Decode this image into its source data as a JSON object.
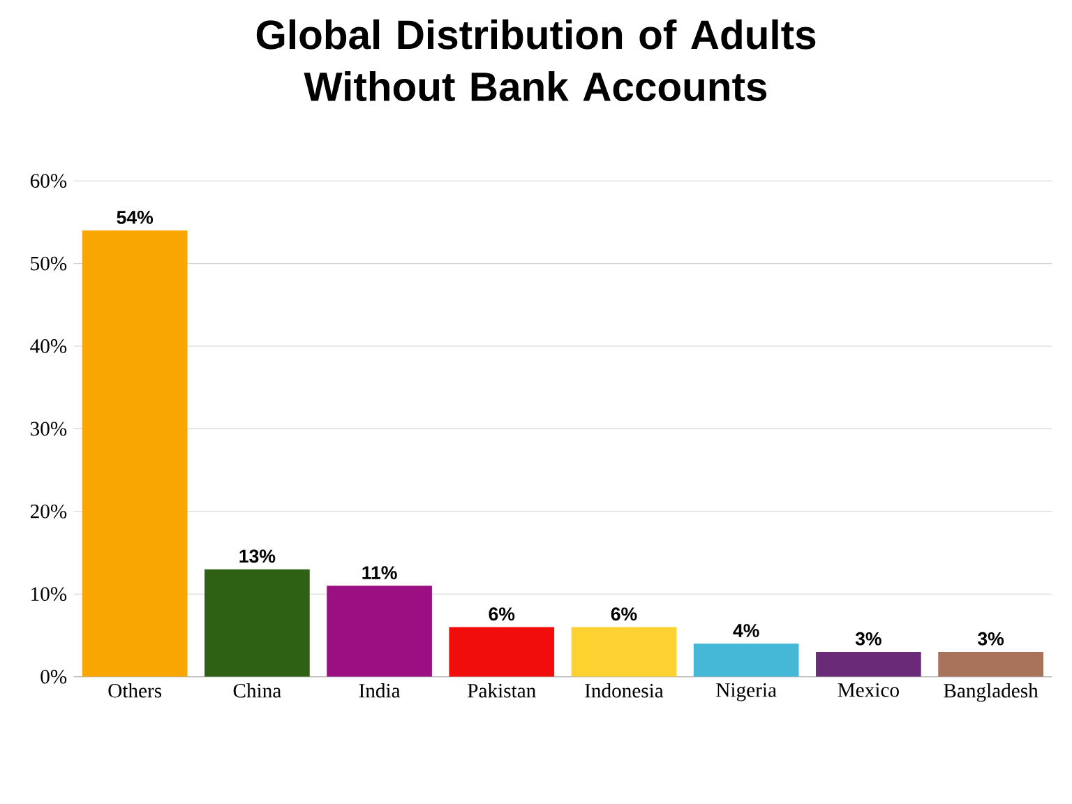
{
  "chart_data": {
    "type": "bar",
    "title": "Global Distribution of Adults Without Bank Accounts",
    "categories": [
      "Others",
      "China",
      "India",
      "Pakistan",
      "Indonesia",
      "Nigeria",
      "Mexico",
      "Bangladesh"
    ],
    "values": [
      54,
      13,
      11,
      6,
      6,
      4,
      3,
      3
    ],
    "colors": [
      "#f9a602",
      "#2f6114",
      "#9c0f82",
      "#f20d0d",
      "#fdd230",
      "#45b8d8",
      "#6b2a78",
      "#a8735a"
    ],
    "value_labels": [
      "54%",
      "13%",
      "11%",
      "6%",
      "6%",
      "4%",
      "3%",
      "3%"
    ],
    "ylim": [
      0,
      60
    ],
    "yticks": [
      {
        "value": 0,
        "label": "0%"
      },
      {
        "value": 10,
        "label": "10%"
      },
      {
        "value": 20,
        "label": "20%"
      },
      {
        "value": 30,
        "label": "30%"
      },
      {
        "value": 40,
        "label": "40%"
      },
      {
        "value": 50,
        "label": "50%"
      },
      {
        "value": 60,
        "label": "60%"
      }
    ],
    "grid": "y"
  }
}
